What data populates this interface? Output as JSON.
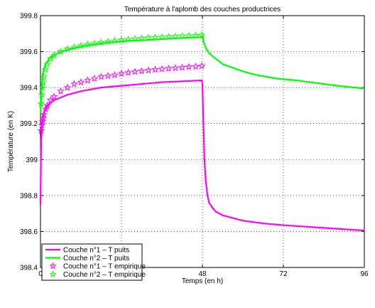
{
  "chart_data": {
    "type": "line",
    "title": "Température à l'aplomb des couches productrices",
    "xlabel": "Temps (en h)",
    "ylabel": "Température (en K)",
    "xlim": [
      0,
      96
    ],
    "ylim": [
      398.4,
      399.8
    ],
    "xticks": [
      0,
      24,
      48,
      72,
      96
    ],
    "xtick_labels": [
      "0",
      "24",
      "48",
      "72",
      "96"
    ],
    "yticks": [
      398.4,
      398.6,
      398.8,
      399,
      399.2,
      399.4,
      399.6,
      399.8
    ],
    "ytick_labels": [
      "398.4",
      "398.6",
      "398.8",
      "399",
      "399.2",
      "399.4",
      "399.6",
      "399.8"
    ],
    "grid": true,
    "legend_position": "bottom-left",
    "series": [
      {
        "name": "Couche n°1 – T puits",
        "color": "#ff00ff",
        "style": "line",
        "points": [
          [
            0,
            398.75
          ],
          [
            0.2,
            399.1
          ],
          [
            0.5,
            399.2
          ],
          [
            1,
            399.26
          ],
          [
            2,
            399.3
          ],
          [
            4,
            399.33
          ],
          [
            8,
            399.36
          ],
          [
            12,
            399.38
          ],
          [
            18,
            399.4
          ],
          [
            24,
            399.41
          ],
          [
            30,
            399.42
          ],
          [
            36,
            399.43
          ],
          [
            42,
            399.435
          ],
          [
            47.8,
            399.44
          ],
          [
            48,
            399.42
          ],
          [
            48.3,
            399.2
          ],
          [
            48.6,
            399.0
          ],
          [
            49,
            398.88
          ],
          [
            49.5,
            398.8
          ],
          [
            50,
            398.76
          ],
          [
            51,
            398.73
          ],
          [
            52,
            398.71
          ],
          [
            54,
            398.69
          ],
          [
            56,
            398.68
          ],
          [
            60,
            398.66
          ],
          [
            66,
            398.645
          ],
          [
            72,
            398.635
          ],
          [
            80,
            398.625
          ],
          [
            88,
            398.615
          ],
          [
            96,
            398.605
          ]
        ]
      },
      {
        "name": "Couche n°2 – T puits",
        "color": "#00ff00",
        "style": "line",
        "points": [
          [
            0,
            399.25
          ],
          [
            0.3,
            399.4
          ],
          [
            0.7,
            399.48
          ],
          [
            1.5,
            399.53
          ],
          [
            3,
            399.57
          ],
          [
            6,
            399.6
          ],
          [
            10,
            399.62
          ],
          [
            14,
            399.635
          ],
          [
            20,
            399.65
          ],
          [
            26,
            399.66
          ],
          [
            32,
            399.665
          ],
          [
            38,
            399.672
          ],
          [
            44,
            399.678
          ],
          [
            47.8,
            399.68
          ],
          [
            48,
            399.69
          ],
          [
            48.3,
            399.66
          ],
          [
            49,
            399.62
          ],
          [
            50,
            399.59
          ],
          [
            52,
            399.56
          ],
          [
            54,
            399.53
          ],
          [
            57,
            399.51
          ],
          [
            60,
            399.49
          ],
          [
            64,
            399.47
          ],
          [
            70,
            399.45
          ],
          [
            76,
            399.44
          ],
          [
            82,
            399.425
          ],
          [
            88,
            399.41
          ],
          [
            96,
            399.395
          ]
        ]
      },
      {
        "name": "Couche n°1 – T empirique",
        "color": "#ff00ff",
        "style": "star",
        "points": [
          [
            0.2,
            399.16
          ],
          [
            0.4,
            399.19
          ],
          [
            0.6,
            399.21
          ],
          [
            0.8,
            399.23
          ],
          [
            1,
            399.25
          ],
          [
            1.5,
            399.28
          ],
          [
            2,
            399.3
          ],
          [
            3,
            399.33
          ],
          [
            4,
            399.35
          ],
          [
            6,
            399.38
          ],
          [
            8,
            399.4
          ],
          [
            10,
            399.42
          ],
          [
            12,
            399.43
          ],
          [
            14,
            399.44
          ],
          [
            16,
            399.45
          ],
          [
            18,
            399.46
          ],
          [
            20,
            399.465
          ],
          [
            22,
            399.47
          ],
          [
            24,
            399.478
          ],
          [
            26,
            399.483
          ],
          [
            28,
            399.488
          ],
          [
            30,
            399.492
          ],
          [
            32,
            399.496
          ],
          [
            34,
            399.5
          ],
          [
            36,
            399.503
          ],
          [
            38,
            399.506
          ],
          [
            40,
            399.509
          ],
          [
            42,
            399.512
          ],
          [
            44,
            399.515
          ],
          [
            46,
            399.517
          ],
          [
            47.8,
            399.52
          ]
        ]
      },
      {
        "name": "Couche n°2 – T empirique",
        "color": "#00ff00",
        "style": "star",
        "points": [
          [
            0.2,
            399.31
          ],
          [
            0.4,
            399.36
          ],
          [
            0.6,
            399.4
          ],
          [
            0.8,
            399.43
          ],
          [
            1,
            399.46
          ],
          [
            1.5,
            399.5
          ],
          [
            2,
            399.53
          ],
          [
            3,
            399.56
          ],
          [
            4,
            399.58
          ],
          [
            6,
            399.6
          ],
          [
            8,
            399.615
          ],
          [
            10,
            399.625
          ],
          [
            12,
            399.633
          ],
          [
            14,
            399.64
          ],
          [
            16,
            399.645
          ],
          [
            18,
            399.65
          ],
          [
            20,
            399.655
          ],
          [
            22,
            399.66
          ],
          [
            24,
            399.664
          ],
          [
            26,
            399.668
          ],
          [
            28,
            399.671
          ],
          [
            30,
            399.674
          ],
          [
            32,
            399.677
          ],
          [
            34,
            399.679
          ],
          [
            36,
            399.681
          ],
          [
            38,
            399.683
          ],
          [
            40,
            399.685
          ],
          [
            42,
            399.687
          ],
          [
            44,
            399.688
          ],
          [
            46,
            399.69
          ],
          [
            47.8,
            399.692
          ]
        ]
      }
    ]
  }
}
